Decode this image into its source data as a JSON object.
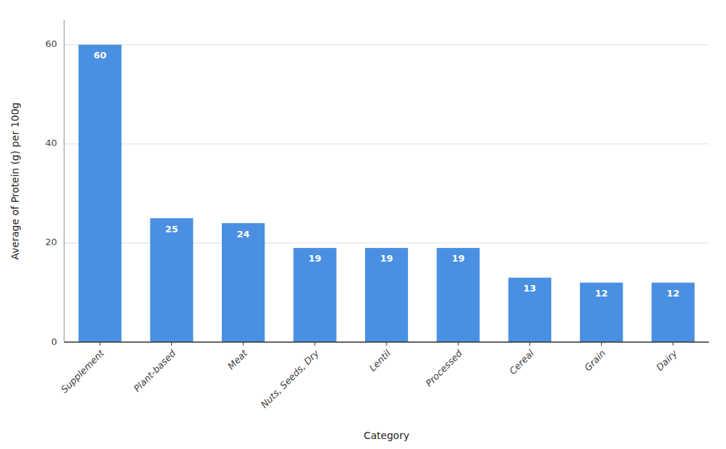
{
  "chart_data": {
    "type": "bar",
    "categories": [
      "Supplement",
      "Plant-based",
      "Meat",
      "Nuts, Seeds, Dry",
      "Lentil",
      "Processed",
      "Cereal",
      "Grain",
      "Dairy"
    ],
    "values": [
      60,
      25,
      24,
      19,
      19,
      19,
      13,
      12,
      12
    ],
    "color": "#4A90E2",
    "xlabel": "Category",
    "ylabel": "Average of Protein (g) per 100g",
    "ylim": [
      0,
      65
    ],
    "yticks": [
      0,
      20,
      40,
      60
    ],
    "grid": true,
    "data_labels": true
  }
}
